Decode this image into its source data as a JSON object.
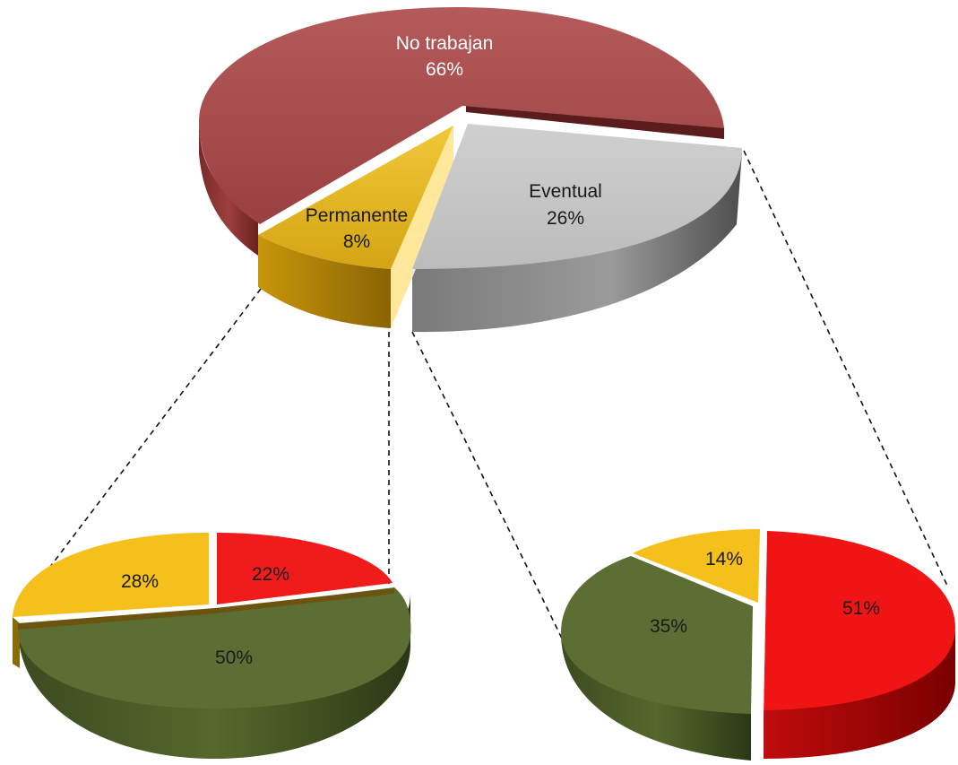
{
  "chart_data": [
    {
      "type": "pie",
      "title": "",
      "slices": [
        {
          "label": "No trabajan",
          "value": 66,
          "value_label": "66%",
          "color": "#a34848"
        },
        {
          "label": "Permanente",
          "value": 8,
          "value_label": "8%",
          "color": "#e2b21a"
        },
        {
          "label": "Eventual",
          "value": 26,
          "value_label": "26%",
          "color": "#c4c4c4"
        }
      ]
    },
    {
      "type": "pie",
      "title": "",
      "breakdown_of": "Permanente",
      "slices": [
        {
          "label": "",
          "value": 22,
          "value_label": "22%",
          "color": "#f01c1c"
        },
        {
          "label": "",
          "value": 50,
          "value_label": "50%",
          "color": "#5c6e34"
        },
        {
          "label": "",
          "value": 28,
          "value_label": "28%",
          "color": "#f5bf1c"
        }
      ]
    },
    {
      "type": "pie",
      "title": "",
      "breakdown_of": "Eventual",
      "slices": [
        {
          "label": "",
          "value": 51,
          "value_label": "51%",
          "color": "#f01414"
        },
        {
          "label": "",
          "value": 35,
          "value_label": "35%",
          "color": "#5c6e34"
        },
        {
          "label": "",
          "value": 14,
          "value_label": "14%",
          "color": "#f5bf1c"
        }
      ]
    }
  ]
}
